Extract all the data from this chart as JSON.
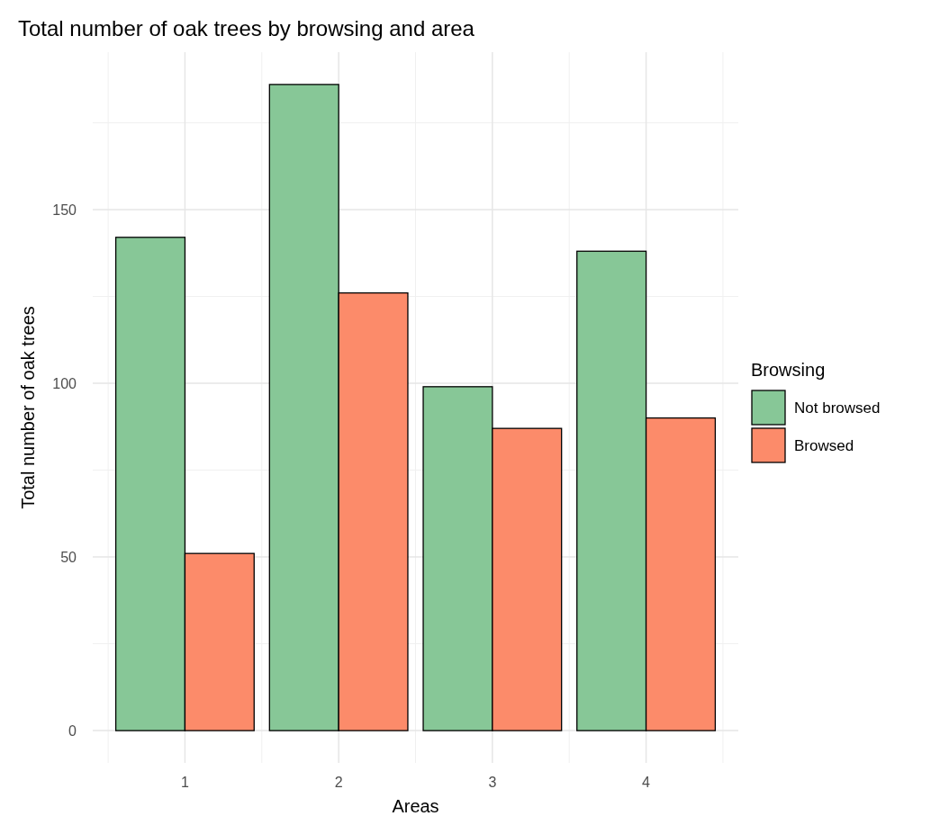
{
  "chart_data": {
    "type": "bar",
    "title": "Total number of oak trees by browsing and area",
    "xlabel": "Areas",
    "ylabel": "Total number of oak trees",
    "legend_title": "Browsing",
    "categories": [
      "1",
      "2",
      "3",
      "4"
    ],
    "series": [
      {
        "name": "Not browsed",
        "color": "#87c797",
        "values": [
          142,
          186,
          99,
          138
        ]
      },
      {
        "name": "Browsed",
        "color": "#fc8b6a",
        "values": [
          51,
          126,
          87,
          90
        ]
      }
    ],
    "ylim": [
      -9.3,
      195.3
    ],
    "yticks": [
      0,
      50,
      100,
      150
    ],
    "grid": true,
    "legend": "right"
  }
}
